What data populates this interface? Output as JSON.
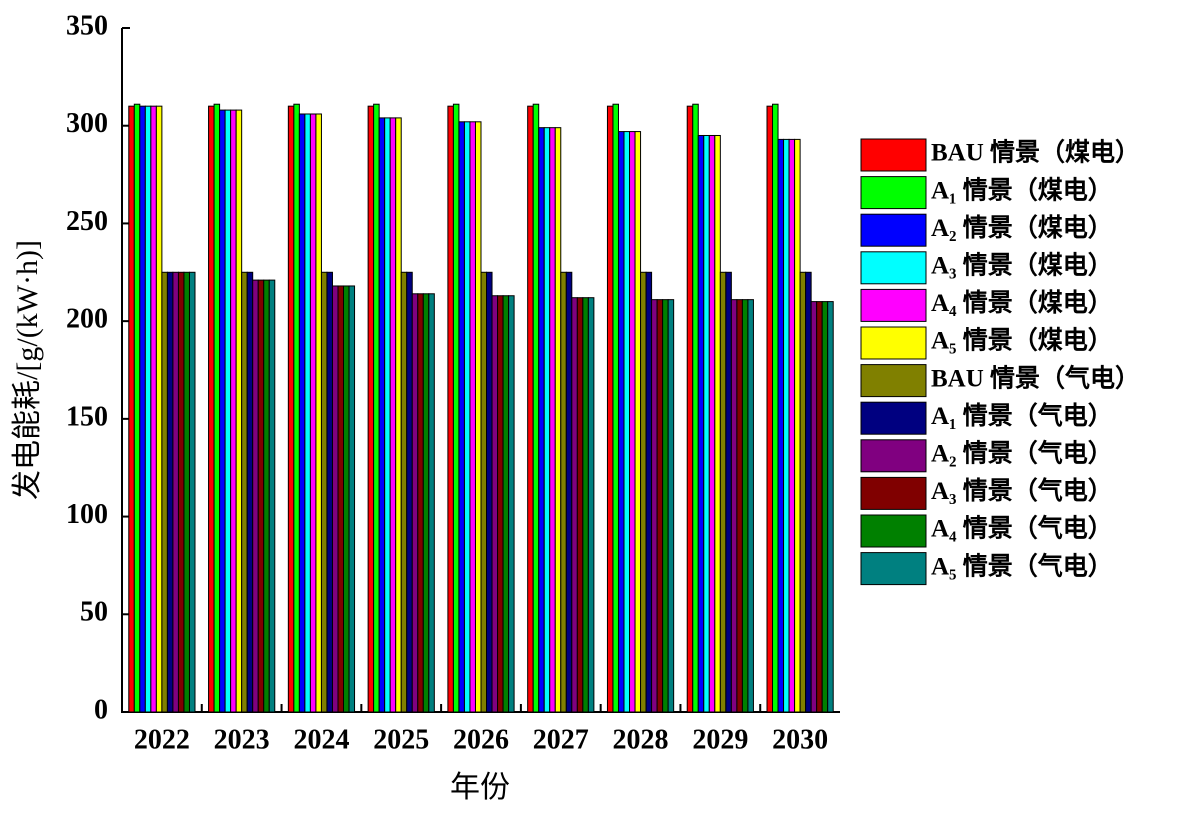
{
  "chart_data": {
    "type": "bar",
    "x_label": "年份",
    "y_label": "发电能耗/[g/(kW·h)]",
    "categories": [
      "2022",
      "2023",
      "2024",
      "2025",
      "2026",
      "2027",
      "2028",
      "2029",
      "2030"
    ],
    "ylim": [
      0,
      350
    ],
    "yticks": [
      0,
      50,
      100,
      150,
      200,
      250,
      300,
      350
    ],
    "grid": false,
    "legend": "right",
    "series": [
      {
        "name": "BAU 情景（煤电）",
        "color": "#ff0000",
        "values": [
          310,
          310,
          310,
          310,
          310,
          310,
          310,
          310,
          310
        ]
      },
      {
        "name": "A₁ 情景（煤电）",
        "color": "#00ff00",
        "values": [
          311,
          311,
          311,
          311,
          311,
          311,
          311,
          311,
          311
        ]
      },
      {
        "name": "A₂ 情景（煤电）",
        "color": "#0000ff",
        "values": [
          310,
          308,
          306,
          304,
          302,
          299,
          297,
          295,
          293
        ]
      },
      {
        "name": "A₃ 情景（煤电）",
        "color": "#00ffff",
        "values": [
          310,
          308,
          306,
          304,
          302,
          299,
          297,
          295,
          293
        ]
      },
      {
        "name": "A₄ 情景（煤电）",
        "color": "#ff00ff",
        "values": [
          310,
          308,
          306,
          304,
          302,
          299,
          297,
          295,
          293
        ]
      },
      {
        "name": "A₅ 情景（煤电）",
        "color": "#ffff00",
        "values": [
          310,
          308,
          306,
          304,
          302,
          299,
          297,
          295,
          293
        ]
      },
      {
        "name": "BAU 情景（气电）",
        "color": "#808000",
        "values": [
          225,
          225,
          225,
          225,
          225,
          225,
          225,
          225,
          225
        ]
      },
      {
        "name": "A₁ 情景（气电）",
        "color": "#000080",
        "values": [
          225,
          225,
          225,
          225,
          225,
          225,
          225,
          225,
          225
        ]
      },
      {
        "name": "A₂ 情景（气电）",
        "color": "#800080",
        "values": [
          225,
          221,
          218,
          214,
          213,
          212,
          211,
          211,
          210
        ]
      },
      {
        "name": "A₃ 情景（气电）",
        "color": "#800000",
        "values": [
          225,
          221,
          218,
          214,
          213,
          212,
          211,
          211,
          210
        ]
      },
      {
        "name": "A₄ 情景（气电）",
        "color": "#008000",
        "values": [
          225,
          221,
          218,
          214,
          213,
          212,
          211,
          211,
          210
        ]
      },
      {
        "name": "A₅ 情景（气电）",
        "color": "#008080",
        "values": [
          225,
          221,
          218,
          214,
          213,
          212,
          211,
          211,
          210
        ]
      }
    ]
  }
}
